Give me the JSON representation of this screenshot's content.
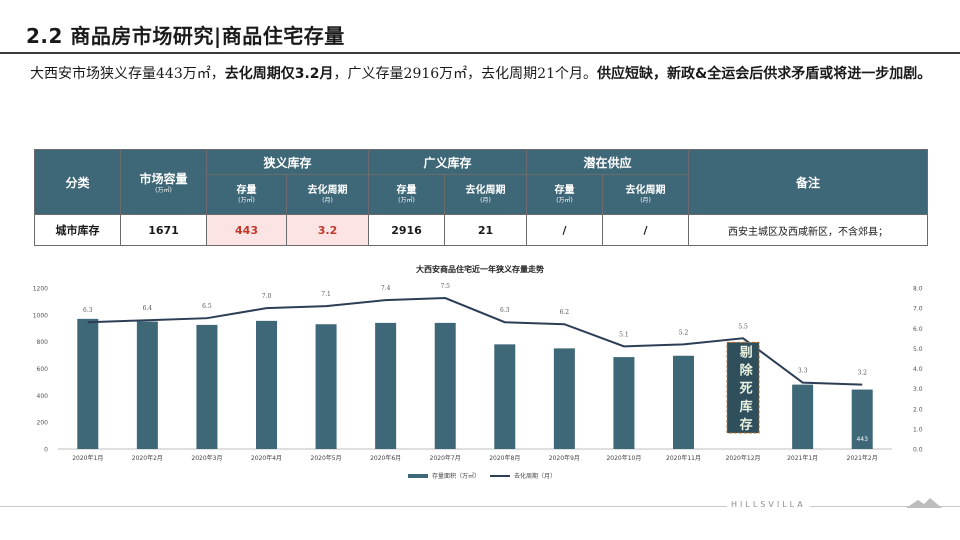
{
  "page": {
    "title": "2.2 商品房市场研究|商品住宅存量",
    "summary_parts": [
      {
        "text": "大西安市场狭义存量443万㎡，",
        "bold": false
      },
      {
        "text": "去化周期仅3.2月",
        "bold": true
      },
      {
        "text": "，广义存量2916万㎡，去化周期21个月。",
        "bold": false
      },
      {
        "text": "供应短缺，新政&全运会后供求矛盾或将进一步加剧。",
        "bold": true
      }
    ],
    "brand": "HILLSVILLA"
  },
  "table": {
    "headers": {
      "category": "分类",
      "capacity": "市场容量",
      "capacity_unit": "(万㎡)",
      "narrow": "狭义库存",
      "broad": "广义库存",
      "potential": "潜在供应",
      "remark": "备注",
      "stock": "存量",
      "stock_unit": "(万㎡)",
      "cycle": "去化周期",
      "cycle_unit": "(月)"
    },
    "row": {
      "category": "城市库存",
      "capacity": "1671",
      "narrow_stock": "443",
      "narrow_cycle": "3.2",
      "broad_stock": "2916",
      "broad_cycle": "21",
      "potential_stock": "/",
      "potential_cycle": "/",
      "remark": "西安主城区及西咸新区，不含郊县；"
    }
  },
  "chart_data": {
    "type": "bar+line",
    "title": "大西安商品住宅近一年狭义存量走势",
    "categories": [
      "2020年1月",
      "2020年2月",
      "2020年3月",
      "2020年4月",
      "2020年5月",
      "2020年6月",
      "2020年7月",
      "2020年8月",
      "2020年9月",
      "2020年10月",
      "2020年11月",
      "2020年12月",
      "2021年1月",
      "2021年2月"
    ],
    "series": [
      {
        "name": "存量面积（万㎡）",
        "type": "bar",
        "axis": "left",
        "color": "#3e6778",
        "values": [
          970,
          950,
          925,
          955,
          930,
          940,
          940,
          780,
          750,
          685,
          695,
          0,
          480,
          443
        ]
      },
      {
        "name": "去化周期（月）",
        "type": "line",
        "axis": "right",
        "color": "#2c3e55",
        "values": [
          6.3,
          6.4,
          6.5,
          7.0,
          7.1,
          7.4,
          7.5,
          6.3,
          6.2,
          5.1,
          5.2,
          5.5,
          3.3,
          3.2
        ]
      }
    ],
    "line_labels": [
      "6.3",
      "6.4",
      "6.5",
      "7.0",
      "7.1",
      "7.4",
      "7.5",
      "6.3",
      "6.2",
      "5.1",
      "5.2",
      "5.5",
      "3.3",
      "3.2"
    ],
    "last_bar_label": "443",
    "annotation": {
      "text": "剔除死库存",
      "category": "2020年12月"
    },
    "y_left": {
      "min": 0,
      "max": 1200,
      "ticks": [
        "0",
        "200",
        "400",
        "600",
        "800",
        "1000",
        "1200"
      ]
    },
    "y_right": {
      "min": 0,
      "max": 8,
      "ticks": [
        "0.0",
        "1.0",
        "2.0",
        "3.0",
        "4.0",
        "5.0",
        "6.0",
        "7.0",
        "8.0"
      ]
    },
    "legend_position": "bottom",
    "grid": false
  }
}
